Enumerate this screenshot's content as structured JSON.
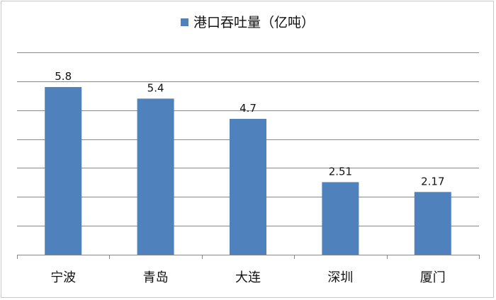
{
  "chart_data": {
    "type": "bar",
    "categories": [
      "宁波",
      "青岛",
      "大连",
      "深圳",
      "厦门"
    ],
    "series": [
      {
        "name": "港口吞吐量（亿吨）",
        "values": [
          5.8,
          5.4,
          4.7,
          2.51,
          2.17
        ]
      }
    ],
    "data_labels": [
      "5.8",
      "5.4",
      "4.7",
      "2.51",
      "2.17"
    ],
    "ylim": [
      0,
      7
    ],
    "grid": true,
    "legend_position": "top",
    "colors": {
      "bar": "#4f81bd",
      "grid": "#888888"
    }
  }
}
